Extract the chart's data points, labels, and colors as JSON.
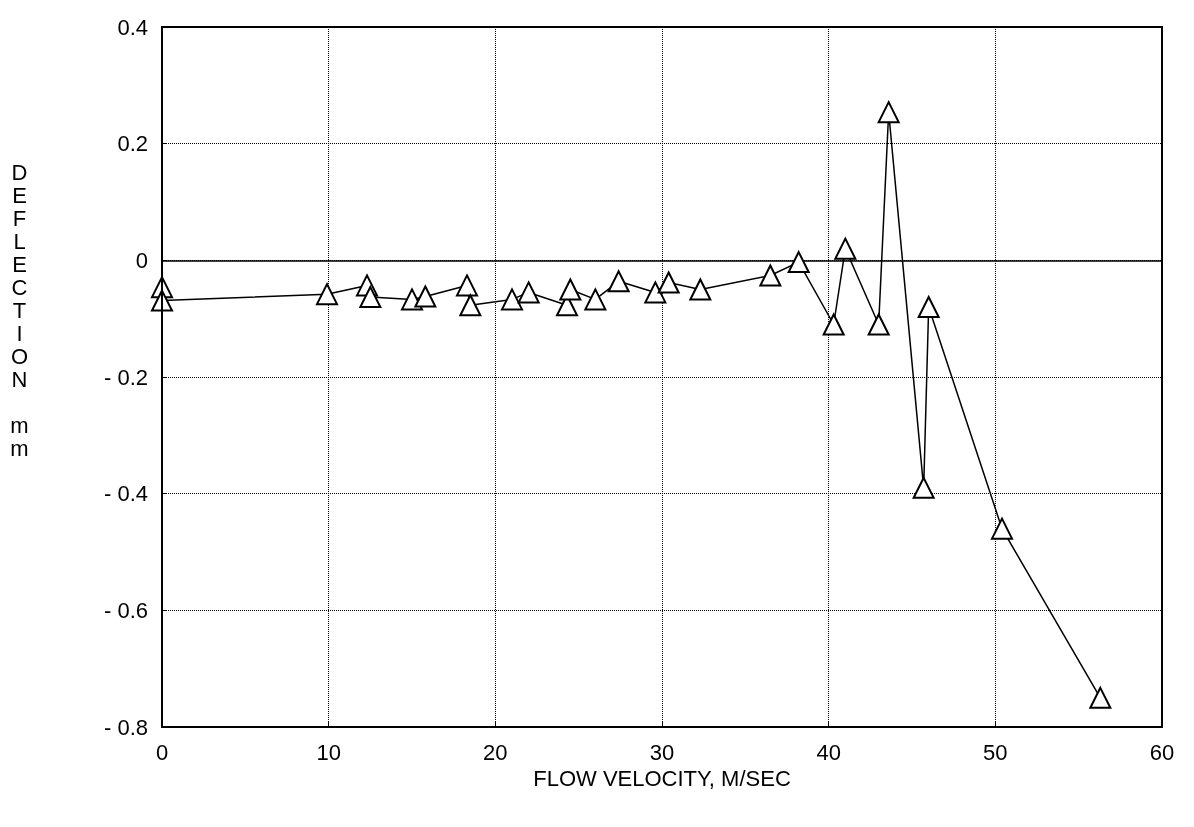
{
  "chart_data": {
    "type": "line",
    "xlabel": "FLOW VELOCITY, M/SEC",
    "ylabel": "DEFLECTION mm",
    "x": [
      0,
      0,
      9.9,
      12.3,
      12.5,
      15,
      15.8,
      18.3,
      18.5,
      21,
      22,
      24.3,
      24.5,
      26,
      27.4,
      29.6,
      30.4,
      32.3,
      36.5,
      38.2,
      40.3,
      41,
      43,
      43.6,
      45.7,
      46,
      50.4,
      56.3
    ],
    "series": [
      {
        "color": "#000000",
        "values": [
          -0.046,
          -0.069,
          -0.058,
          -0.043,
          -0.063,
          -0.067,
          -0.062,
          -0.043,
          -0.077,
          -0.067,
          -0.055,
          -0.077,
          -0.05,
          -0.067,
          -0.036,
          -0.055,
          -0.038,
          -0.05,
          -0.026,
          -0.003,
          -0.11,
          0.02,
          -0.11,
          0.254,
          -0.39,
          -0.08,
          -0.46,
          -0.75
        ]
      }
    ],
    "xlim": [
      0,
      60
    ],
    "xticks": [
      0,
      10,
      20,
      30,
      40,
      50,
      60
    ],
    "ylim": [
      -0.8,
      0.4
    ],
    "yticks": [
      -0.8,
      -0.6,
      -0.4,
      -0.2,
      0,
      0.2,
      0.4
    ],
    "grid": true,
    "marker": "triangle",
    "line_style": "solid",
    "ref_lines": [
      {
        "axis": "y",
        "value": 0,
        "color": "#000000",
        "line_style": "solid"
      }
    ]
  }
}
